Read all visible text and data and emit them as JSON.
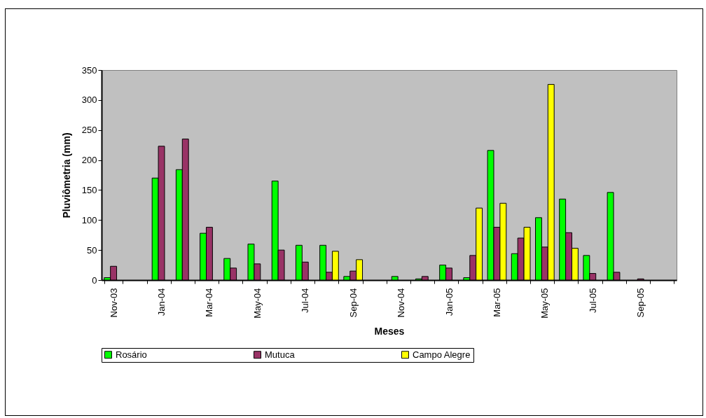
{
  "chart_data": {
    "type": "bar",
    "xlabel": "Meses",
    "ylabel": "Pluviômetria (mm)",
    "categories": [
      "Nov-03",
      null,
      "Jan-04",
      null,
      "Mar-04",
      null,
      "May-04",
      null,
      "Jul-04",
      null,
      "Sep-04",
      null,
      "Nov-04",
      null,
      "Jan-05",
      null,
      "Mar-05",
      null,
      "May-05",
      null,
      "Jul-05",
      null,
      "Sep-05",
      null
    ],
    "series": [
      {
        "name": "Rosário",
        "color": "#00ff00",
        "values": [
          4,
          null,
          170,
          184,
          78,
          36,
          60,
          165,
          58,
          58,
          6,
          null,
          6,
          2,
          25,
          4,
          216,
          44,
          104,
          135,
          41,
          146,
          null,
          null
        ]
      },
      {
        "name": "Mutuca",
        "color": "#993366",
        "values": [
          23,
          null,
          223,
          235,
          88,
          20,
          27,
          50,
          30,
          13,
          15,
          null,
          null,
          6,
          20,
          41,
          88,
          70,
          55,
          79,
          11,
          13,
          2,
          null
        ]
      },
      {
        "name": "Campo Alegre",
        "color": "#ffff00",
        "values": [
          null,
          null,
          null,
          null,
          null,
          null,
          null,
          null,
          null,
          48,
          34,
          null,
          null,
          null,
          null,
          120,
          128,
          88,
          326,
          53,
          null,
          null,
          null,
          null
        ]
      }
    ],
    "ylim": [
      0,
      350
    ],
    "yticks": [
      0,
      50,
      100,
      150,
      200,
      250,
      300,
      350
    ],
    "grid": false,
    "legend": "bottom"
  }
}
